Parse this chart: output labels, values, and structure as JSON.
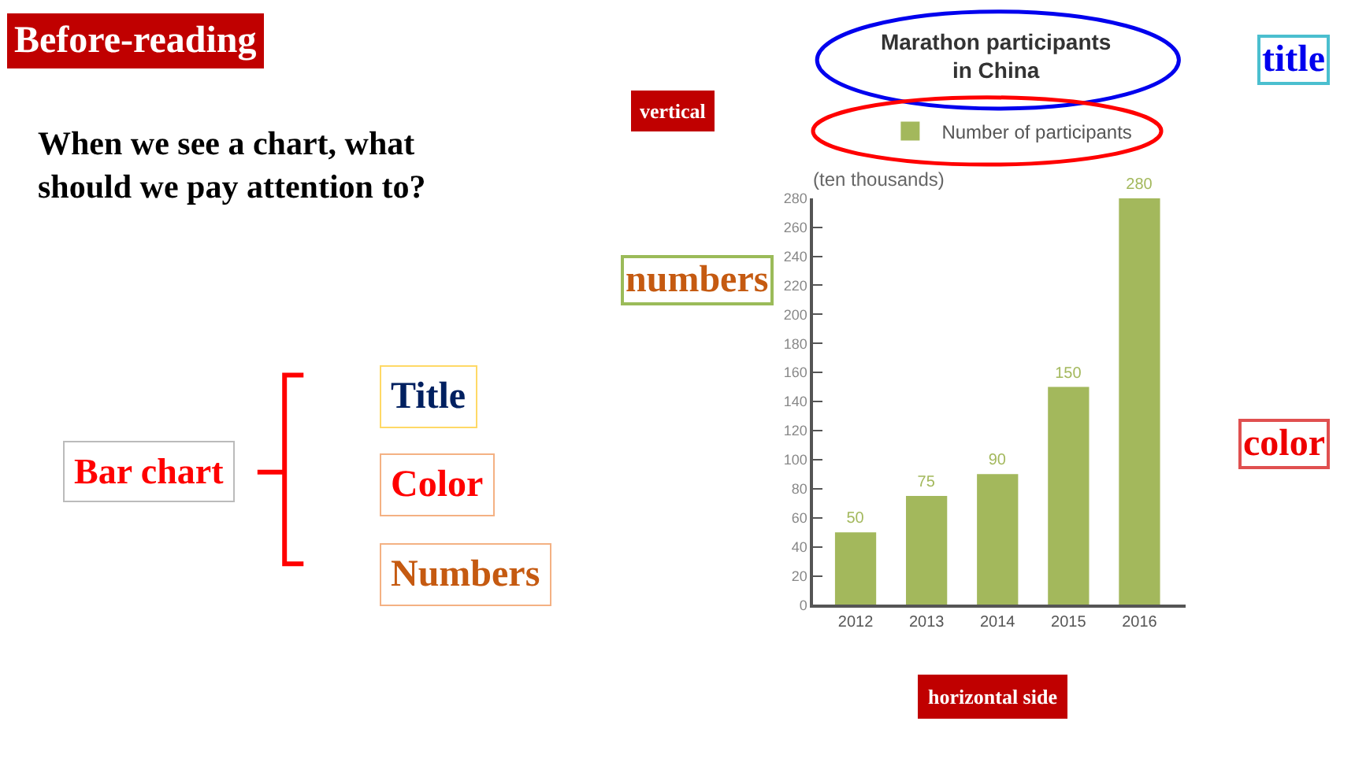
{
  "chart_data": {
    "type": "bar",
    "title": "Marathon participants\nin China",
    "ylabel": "(ten thousands)",
    "categories": [
      "2012",
      "2013",
      "2014",
      "2015",
      "2016"
    ],
    "series": [
      {
        "name": "Number of participants",
        "color": "#a3b85c",
        "values": [
          50,
          75,
          90,
          150,
          280
        ]
      }
    ],
    "ylim": [
      0,
      280
    ],
    "yticks": [
      0,
      20,
      40,
      60,
      80,
      100,
      120,
      140,
      160,
      180,
      200,
      220,
      240,
      260,
      280
    ],
    "data_labels": true,
    "legend": "top",
    "annotations": [
      "Before-reading",
      "When we see a chart, what\nshould we pay attention to?",
      "vertical",
      "title",
      "numbers",
      "color",
      "Bar chart",
      "Title",
      "Color",
      "Numbers",
      "horizontal side"
    ]
  }
}
